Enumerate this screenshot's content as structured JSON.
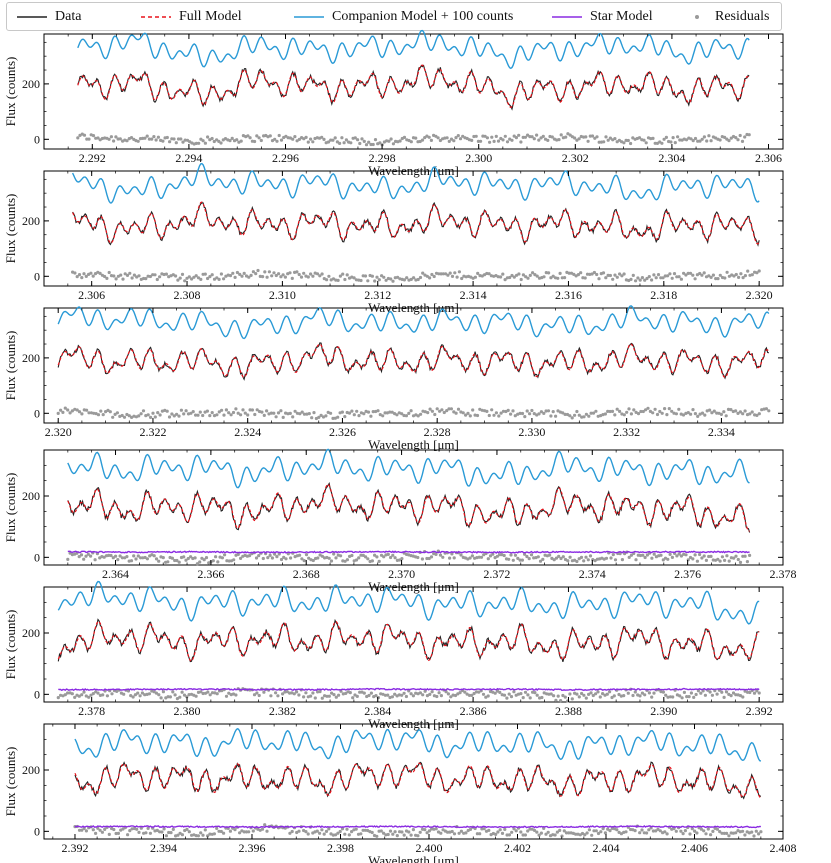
{
  "legend": {
    "data": "Data",
    "full_model": "Full Model",
    "companion": "Companion Model + 100 counts",
    "star": "Star Model",
    "residuals": "Residuals"
  },
  "colors": {
    "data": "#222222",
    "full_model": "#e8131b",
    "companion": "#2a9ad6",
    "star": "#8a2be2",
    "residuals": "#9a9a9a"
  },
  "chart_data": [
    {
      "type": "line",
      "xlabel": "Wavelength [μm]",
      "ylabel": "Flux (counts)",
      "xlim": [
        2.291,
        2.3063
      ],
      "ylim": [
        -35,
        380
      ],
      "xticks": [
        "2.292",
        "2.294",
        "2.296",
        "2.298",
        "2.300",
        "2.302",
        "2.304",
        "2.306"
      ],
      "yticks": [
        "0",
        "200"
      ],
      "data_range": [
        2.2917,
        2.3056
      ],
      "series": [
        {
          "name": "Data",
          "values": [
            200,
            210,
            150,
            220,
            180,
            200,
            230,
            160,
            190,
            210,
            170,
            205
          ]
        },
        {
          "name": "Full Model",
          "values": [
            195,
            205,
            155,
            215,
            185,
            195,
            225,
            165,
            185,
            205,
            175,
            200
          ]
        },
        {
          "name": "Companion Model + 100 counts",
          "values": [
            330,
            355,
            290,
            340,
            320,
            335,
            350,
            300,
            330,
            345,
            310,
            340
          ]
        },
        {
          "name": "Residuals",
          "values": [
            10,
            0,
            -5,
            5,
            0,
            -10,
            5,
            0,
            10,
            -5,
            0,
            5
          ]
        }
      ]
    },
    {
      "type": "line",
      "xlabel": "Wavelength [μm]",
      "ylabel": "Flux (counts)",
      "xlim": [
        2.305,
        2.3205
      ],
      "ylim": [
        -35,
        380
      ],
      "xticks": [
        "2.306",
        "2.308",
        "2.310",
        "2.312",
        "2.314",
        "2.316",
        "2.318",
        "2.320"
      ],
      "yticks": [
        "0",
        "200"
      ],
      "data_range": [
        2.3056,
        2.32
      ],
      "series": [
        {
          "name": "Data",
          "values": [
            205,
            160,
            215,
            190,
            200,
            170,
            210,
            185,
            200,
            160,
            195,
            180
          ]
        },
        {
          "name": "Full Model",
          "values": [
            200,
            165,
            210,
            185,
            195,
            175,
            205,
            180,
            195,
            165,
            190,
            175
          ]
        },
        {
          "name": "Companion Model + 100 counts",
          "values": [
            345,
            300,
            355,
            330,
            340,
            310,
            350,
            325,
            340,
            300,
            335,
            320
          ]
        },
        {
          "name": "Residuals",
          "values": [
            5,
            0,
            -5,
            10,
            0,
            -10,
            5,
            0,
            5,
            -5,
            0,
            10
          ]
        }
      ]
    },
    {
      "type": "line",
      "xlabel": "Wavelength [μm]",
      "ylabel": "Flux (counts)",
      "xlim": [
        2.3197,
        2.3353
      ],
      "ylim": [
        -35,
        380
      ],
      "xticks": [
        "2.320",
        "2.322",
        "2.324",
        "2.326",
        "2.328",
        "2.330",
        "2.332",
        "2.334"
      ],
      "yticks": [
        "0",
        "200"
      ],
      "data_range": [
        2.32,
        2.335
      ],
      "series": [
        {
          "name": "Data",
          "values": [
            210,
            180,
            195,
            165,
            215,
            185,
            200,
            190,
            175,
            205,
            185,
            195
          ]
        },
        {
          "name": "Full Model",
          "values": [
            205,
            185,
            190,
            170,
            210,
            180,
            195,
            185,
            180,
            200,
            180,
            190
          ]
        },
        {
          "name": "Companion Model + 100 counts",
          "values": [
            350,
            340,
            330,
            305,
            345,
            320,
            335,
            330,
            310,
            345,
            320,
            330
          ]
        },
        {
          "name": "Residuals",
          "values": [
            10,
            -5,
            0,
            5,
            -10,
            0,
            5,
            0,
            -5,
            10,
            0,
            5
          ]
        }
      ]
    },
    {
      "type": "line",
      "xlabel": "Wavelength [μm]",
      "ylabel": "Flux (counts)",
      "xlim": [
        2.3625,
        2.378
      ],
      "ylim": [
        -25,
        350
      ],
      "xticks": [
        "2.364",
        "2.366",
        "2.368",
        "2.370",
        "2.372",
        "2.374",
        "2.376",
        "2.378"
      ],
      "yticks": [
        "0",
        "200"
      ],
      "data_range": [
        2.363,
        2.3773
      ],
      "series": [
        {
          "name": "Data",
          "values": [
            180,
            150,
            175,
            140,
            190,
            160,
            175,
            130,
            180,
            165,
            150,
            110
          ]
        },
        {
          "name": "Full Model",
          "values": [
            175,
            155,
            170,
            145,
            185,
            165,
            170,
            135,
            175,
            160,
            155,
            115
          ]
        },
        {
          "name": "Companion Model + 100 counts",
          "values": [
            300,
            280,
            300,
            270,
            305,
            285,
            295,
            260,
            300,
            285,
            280,
            270
          ]
        },
        {
          "name": "Star Model",
          "values": [
            18,
            17,
            18,
            16,
            17,
            18,
            17,
            16,
            18,
            17,
            18,
            17
          ]
        },
        {
          "name": "Residuals",
          "values": [
            5,
            0,
            -10,
            5,
            0,
            -5,
            10,
            0,
            -5,
            5,
            0,
            -5
          ]
        }
      ]
    },
    {
      "type": "line",
      "xlabel": "Wavelength [μm]",
      "ylabel": "Flux (counts)",
      "xlim": [
        2.377,
        2.3925
      ],
      "ylim": [
        -25,
        350
      ],
      "xticks": [
        "2.378",
        "2.380",
        "2.382",
        "2.384",
        "2.386",
        "2.388",
        "2.390",
        "2.392"
      ],
      "yticks": [
        "0",
        "200"
      ],
      "data_range": [
        2.3773,
        2.392
      ],
      "series": [
        {
          "name": "Data",
          "values": [
            150,
            200,
            160,
            185,
            170,
            195,
            160,
            180,
            150,
            190,
            165,
            140
          ]
        },
        {
          "name": "Full Model",
          "values": [
            155,
            195,
            165,
            180,
            175,
            190,
            165,
            175,
            155,
            185,
            160,
            145
          ]
        },
        {
          "name": "Companion Model + 100 counts",
          "values": [
            310,
            320,
            290,
            305,
            300,
            315,
            290,
            300,
            285,
            305,
            295,
            250
          ]
        },
        {
          "name": "Star Model",
          "values": [
            15,
            16,
            17,
            16,
            15,
            17,
            16,
            17,
            15,
            16,
            17,
            16
          ]
        },
        {
          "name": "Residuals",
          "values": [
            0,
            5,
            -5,
            10,
            0,
            -5,
            5,
            0,
            -10,
            5,
            0,
            5
          ]
        }
      ]
    },
    {
      "type": "line",
      "xlabel": "Wavelength [μm]",
      "ylabel": "Flux (counts)",
      "xlim": [
        2.3913,
        2.408
      ],
      "ylim": [
        -25,
        350
      ],
      "xticks": [
        "2.392",
        "2.394",
        "2.396",
        "2.398",
        "2.400",
        "2.402",
        "2.404",
        "2.406",
        "2.408"
      ],
      "yticks": [
        "0",
        "200"
      ],
      "data_range": [
        2.392,
        2.4075
      ],
      "series": [
        {
          "name": "Data",
          "values": [
            150,
            190,
            165,
            180,
            155,
            200,
            165,
            175,
            150,
            185,
            160,
            140
          ]
        },
        {
          "name": "Full Model",
          "values": [
            155,
            185,
            170,
            175,
            160,
            195,
            170,
            170,
            155,
            180,
            165,
            145
          ]
        },
        {
          "name": "Companion Model + 100 counts",
          "values": [
            270,
            300,
            280,
            300,
            275,
            310,
            280,
            290,
            270,
            295,
            280,
            260
          ]
        },
        {
          "name": "Star Model",
          "values": [
            15,
            16,
            15,
            14,
            15,
            16,
            15,
            14,
            15,
            16,
            15,
            14
          ]
        },
        {
          "name": "Residuals",
          "values": [
            5,
            0,
            -5,
            10,
            0,
            -10,
            5,
            0,
            -5,
            5,
            0,
            -5
          ]
        }
      ]
    }
  ]
}
